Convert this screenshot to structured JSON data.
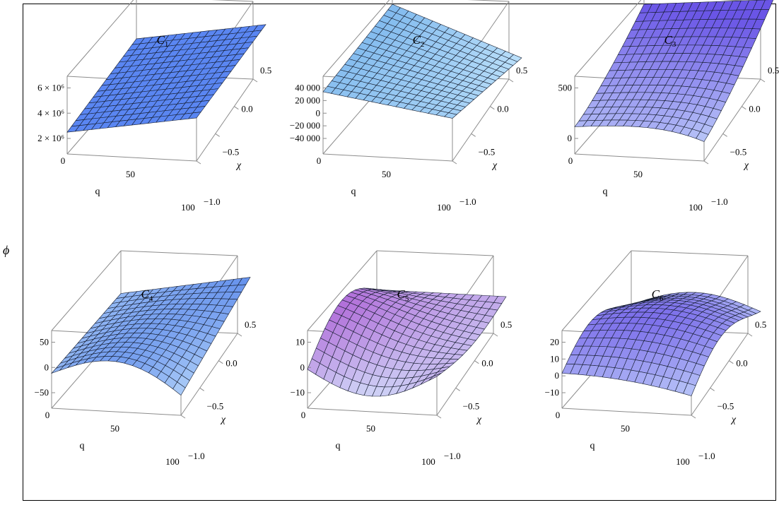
{
  "figure": {
    "y_axis_symbol": "ϕ"
  },
  "colors": {
    "frame": "#000000",
    "box": "#8c8c8c",
    "mesh": "#141c2e",
    "low": "#d8f2ff",
    "mid": "#7fb9ee",
    "high": "#6a55e6",
    "extreme": "#b06ad8"
  },
  "chart_data": [
    {
      "type": "surface3d",
      "title": "C",
      "title_sub": "1",
      "xlabel": "q",
      "ylabel": "χ",
      "zlabel": "ϕ",
      "x_range": [
        0,
        100
      ],
      "y_range": [
        -1.0,
        0.5
      ],
      "x_ticks": [
        "0",
        "50",
        "100"
      ],
      "y_ticks": [
        "0.5",
        "0.0",
        "−0.5",
        "−1.0"
      ],
      "z_ticks": [
        "6 × 10⁶",
        "4 × 10⁶",
        "2 × 10⁶"
      ],
      "z_range": [
        0,
        7000000
      ],
      "shape": "plane_rising",
      "colorscheme": "flat-blue"
    },
    {
      "type": "surface3d",
      "title": "C",
      "title_sub": "2",
      "xlabel": "q",
      "ylabel": "χ",
      "zlabel": "ϕ",
      "x_range": [
        0,
        100
      ],
      "y_range": [
        -1.0,
        0.5
      ],
      "x_ticks": [
        "0",
        "50",
        "100"
      ],
      "y_ticks": [
        "0.5",
        "0.0",
        "−0.5",
        "−1.0"
      ],
      "z_ticks": [
        "40 000",
        "20 000",
        "0",
        "−20 000",
        "−40 000"
      ],
      "z_range": [
        -50000,
        50000
      ],
      "shape": "tilted_plane",
      "colorscheme": "light-blue"
    },
    {
      "type": "surface3d",
      "title": "C",
      "title_sub": "3",
      "xlabel": "q",
      "ylabel": "χ",
      "zlabel": "ϕ",
      "x_range": [
        0,
        100
      ],
      "y_range": [
        -1.0,
        0.5
      ],
      "x_ticks": [
        "0",
        "50",
        "100"
      ],
      "y_ticks": [
        "0.5",
        "0.0",
        "−0.5",
        "−1.0"
      ],
      "z_ticks": [
        "500",
        "0"
      ],
      "z_range": [
        -300,
        800
      ],
      "shape": "curved_rise",
      "colorscheme": "blue-violet"
    },
    {
      "type": "surface3d",
      "title": "C",
      "title_sub": "4",
      "xlabel": "q",
      "ylabel": "χ",
      "zlabel": "ϕ",
      "x_range": [
        0,
        100
      ],
      "y_range": [
        -1.0,
        0.5
      ],
      "x_ticks": [
        "0",
        "50",
        "100"
      ],
      "y_ticks": [
        "0.5",
        "0.0",
        "−0.5",
        "−1.0"
      ],
      "z_ticks": [
        "50",
        "0",
        "−50"
      ],
      "z_range": [
        -70,
        70
      ],
      "shape": "saddle",
      "colorscheme": "blue"
    },
    {
      "type": "surface3d",
      "title": "C",
      "title_sub": "5",
      "xlabel": "q",
      "ylabel": "χ",
      "zlabel": "ϕ",
      "x_range": [
        0,
        100
      ],
      "y_range": [
        -1.0,
        0.5
      ],
      "x_ticks": [
        "0",
        "50",
        "100"
      ],
      "y_ticks": [
        "0.5",
        "0.0",
        "−0.5",
        "−1.0"
      ],
      "z_ticks": [
        "10",
        "0",
        "−10"
      ],
      "z_range": [
        -20,
        20
      ],
      "shape": "deep_saddle",
      "colorscheme": "violet"
    },
    {
      "type": "surface3d",
      "title": "C",
      "title_sub": "6",
      "xlabel": "q",
      "ylabel": "χ",
      "zlabel": "ϕ",
      "x_range": [
        0,
        100
      ],
      "y_range": [
        -1.0,
        0.5
      ],
      "x_ticks": [
        "0",
        "50",
        "100"
      ],
      "y_ticks": [
        "0.5",
        "0.0",
        "−0.5",
        "−1.0"
      ],
      "z_ticks": [
        "20",
        "10",
        "0",
        "−10"
      ],
      "z_range": [
        -20,
        25
      ],
      "shape": "wave",
      "colorscheme": "blue-violet"
    }
  ]
}
